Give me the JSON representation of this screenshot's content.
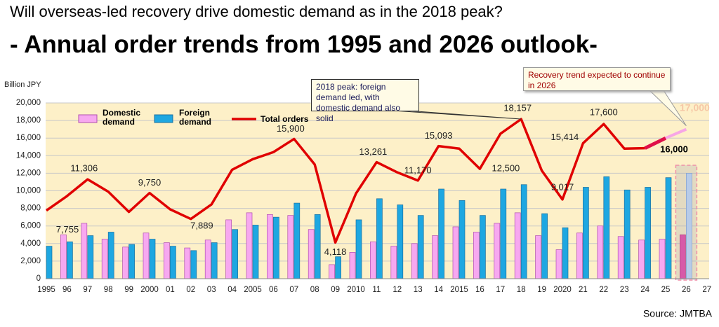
{
  "chart_data": {
    "type": "bar",
    "subtitle": "Will overseas-led recovery drive domestic demand as in the 2018 peak?",
    "title": "- Annual order trends from 1995 and 2026 outlook-",
    "y_label": "Billion JPY",
    "source": "Source: JMTBA",
    "annotations": [
      "2018 peak: foreign demand led, with domestic demand also solid",
      "Recovery trend expected to continue in 2026"
    ],
    "categories": [
      "1995",
      "96",
      "97",
      "98",
      "99",
      "2000",
      "01",
      "02",
      "03",
      "04",
      "2005",
      "06",
      "07",
      "08",
      "09",
      "2010",
      "11",
      "12",
      "13",
      "14",
      "2015",
      "16",
      "17",
      "18",
      "19",
      "2020",
      "21",
      "22",
      "23",
      "24",
      "25",
      "26",
      "27"
    ],
    "series": [
      {
        "name": "Domestic demand",
        "color": "#f7a8f0",
        "values": [
          null,
          5000,
          6300,
          4500,
          3600,
          5200,
          4100,
          3500,
          4400,
          6700,
          7500,
          7300,
          7200,
          5600,
          1600,
          3000,
          4200,
          3700,
          4000,
          4900,
          5900,
          5300,
          6300,
          7500,
          4900,
          3300,
          5200,
          6000,
          4800,
          4400,
          4500,
          5000,
          null
        ]
      },
      {
        "name": "Foreign demand",
        "color": "#1ea7e1",
        "values": [
          3700,
          4200,
          4900,
          5300,
          3900,
          4500,
          3700,
          3200,
          4100,
          5600,
          6100,
          7000,
          8600,
          7300,
          2500,
          6700,
          9100,
          8400,
          7200,
          10200,
          8900,
          7200,
          10200,
          10700,
          7400,
          5800,
          10400,
          11600,
          10100,
          10400,
          11500,
          12000,
          null
        ]
      },
      {
        "name": "Total orders",
        "type": "line",
        "color": "#e00000",
        "values": [
          7755,
          9400,
          11306,
          9900,
          7600,
          9750,
          7889,
          6800,
          8450,
          12400,
          13600,
          14400,
          15900,
          13000,
          4118,
          9700,
          13261,
          12100,
          11170,
          15093,
          14800,
          12500,
          16500,
          18157,
          12300,
          9017,
          15414,
          17600,
          14800,
          14850,
          16000,
          17000,
          null
        ],
        "value_labels": [
          "7,755",
          null,
          "11,306",
          null,
          null,
          "9,750",
          "7,889",
          null,
          null,
          null,
          null,
          null,
          "15,900",
          null,
          "4,118",
          null,
          "13,261",
          null,
          "11,170",
          "15,093",
          null,
          "12,500",
          null,
          "18,157",
          null,
          "9,017",
          "15,414",
          "17,600",
          null,
          null,
          "16,000",
          "17,000",
          null
        ]
      }
    ],
    "ylim": [
      0,
      20000
    ],
    "yticks": [
      0,
      {
        "value": 2000,
        "label": "2,000"
      },
      {
        "value": 4000,
        "label": "4,000"
      },
      {
        "value": 6000,
        "label": "6,000"
      },
      {
        "value": 8000,
        "label": "8,000"
      },
      {
        "value": 10000,
        "label": "10,000"
      },
      {
        "value": 12000,
        "label": "12,000"
      },
      {
        "value": 14000,
        "label": "14,000"
      },
      {
        "value": 16000,
        "label": "16,000"
      },
      {
        "value": 18000,
        "label": "18,000"
      },
      {
        "value": 20000,
        "label": "20,000"
      }
    ],
    "grid": true
  }
}
